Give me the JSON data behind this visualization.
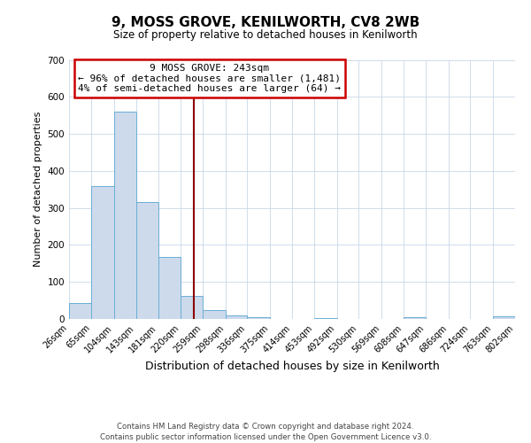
{
  "title": "9, MOSS GROVE, KENILWORTH, CV8 2WB",
  "subtitle": "Size of property relative to detached houses in Kenilworth",
  "xlabel": "Distribution of detached houses by size in Kenilworth",
  "ylabel": "Number of detached properties",
  "bin_edges": [
    26,
    65,
    104,
    143,
    181,
    220,
    259,
    298,
    336,
    375,
    414,
    453,
    492,
    530,
    569,
    608,
    647,
    686,
    724,
    763,
    802
  ],
  "bin_counts": [
    44,
    360,
    560,
    315,
    168,
    62,
    25,
    10,
    4,
    0,
    0,
    3,
    0,
    0,
    0,
    4,
    0,
    0,
    0,
    6
  ],
  "vline_x": 243,
  "annotation_title": "9 MOSS GROVE: 243sqm",
  "annotation_line1": "← 96% of detached houses are smaller (1,481)",
  "annotation_line2": "4% of semi-detached houses are larger (64) →",
  "bar_color": "#ccdaec",
  "bar_edge_color": "#6baed6",
  "vline_color": "#8b0000",
  "annotation_box_edgecolor": "#cc0000",
  "ylim": [
    0,
    700
  ],
  "yticks": [
    0,
    100,
    200,
    300,
    400,
    500,
    600,
    700
  ],
  "footer1": "Contains HM Land Registry data © Crown copyright and database right 2024.",
  "footer2": "Contains public sector information licensed under the Open Government Licence v3.0.",
  "background_color": "#ffffff",
  "grid_color": "#c8d8e8"
}
